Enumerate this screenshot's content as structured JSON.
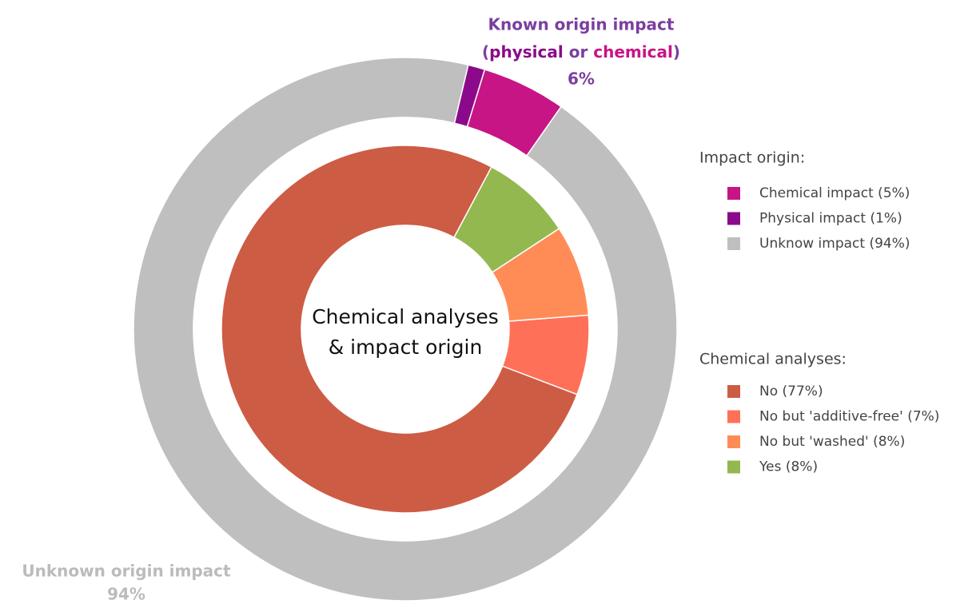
{
  "chart_data": {
    "type": "nested-donut",
    "center_label": [
      "Chemical analyses",
      "& impact origin"
    ],
    "outer": {
      "legend_title": "Impact origin:",
      "series": [
        {
          "name": "Chemical impact (5%)",
          "color": "#c71585",
          "value": 5
        },
        {
          "name": "Physical impact (1%)",
          "color": "#8b0a8b",
          "value": 1
        },
        {
          "name": "Unknow impact (94%)",
          "color": "#bfbfbf",
          "value": 94
        }
      ]
    },
    "inner": {
      "legend_title": "Chemical analyses:",
      "series": [
        {
          "name": "No (77%)",
          "color": "#cd5c45",
          "value": 77
        },
        {
          "name": "No but 'additive-free' (7%)",
          "color": "#ff7058",
          "value": 7
        },
        {
          "name": "No but 'washed' (8%)",
          "color": "#ff8c57",
          "value": 8
        },
        {
          "name": "Yes (8%)",
          "color": "#92b84f",
          "value": 8
        }
      ]
    },
    "annotations": {
      "known": {
        "line1": "Known origin impact",
        "open": "(",
        "physical": "physical",
        "or": " or ",
        "chemical": "chemical",
        "close": ")",
        "value_label": "6%"
      },
      "unknown": {
        "line1": "Unknown origin impact",
        "value_label": "94%"
      }
    }
  }
}
